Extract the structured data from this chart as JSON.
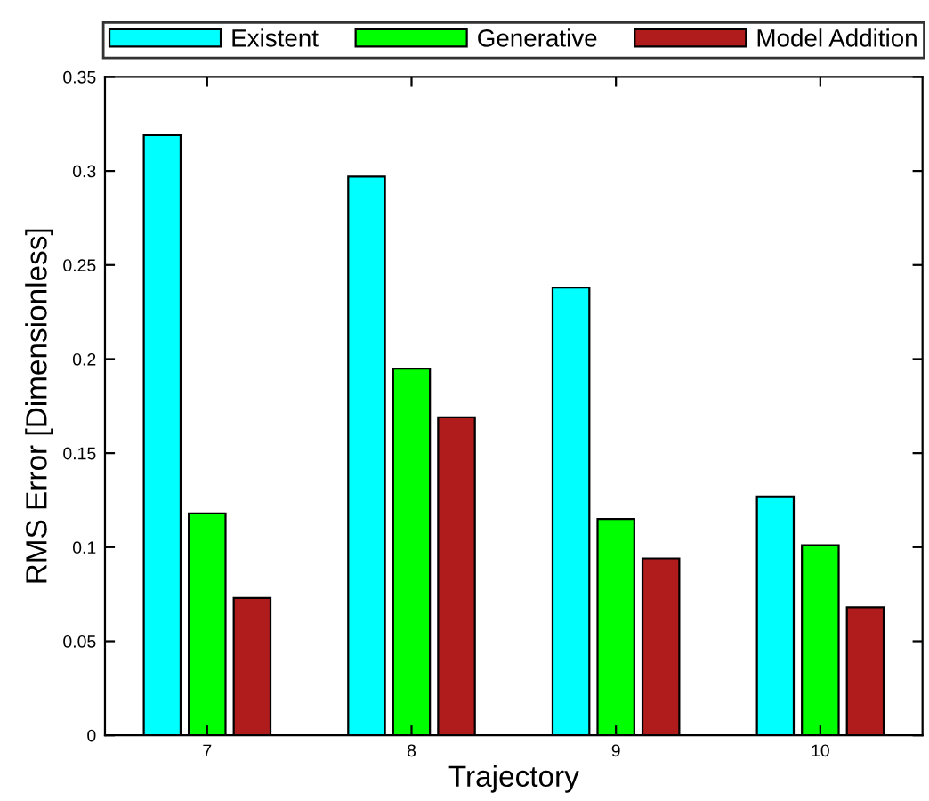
{
  "chart_data": {
    "type": "bar",
    "xlabel": "Trajectory",
    "ylabel": "RMS Error [Dimensionless]",
    "categories": [
      "7",
      "8",
      "9",
      "10"
    ],
    "series": [
      {
        "name": "Existent",
        "color": "#00ffff",
        "values": [
          0.319,
          0.297,
          0.238,
          0.127
        ]
      },
      {
        "name": "Generative",
        "color": "#00ff00",
        "values": [
          0.118,
          0.195,
          0.115,
          0.101
        ]
      },
      {
        "name": "Model Addition",
        "color": "#b01c1c",
        "values": [
          0.073,
          0.169,
          0.094,
          0.068
        ]
      }
    ],
    "ylim": [
      0,
      0.35
    ],
    "yticks": [
      0,
      0.05,
      0.1,
      0.15,
      0.2,
      0.25,
      0.3,
      0.35
    ],
    "grid": false,
    "legend": "top"
  }
}
